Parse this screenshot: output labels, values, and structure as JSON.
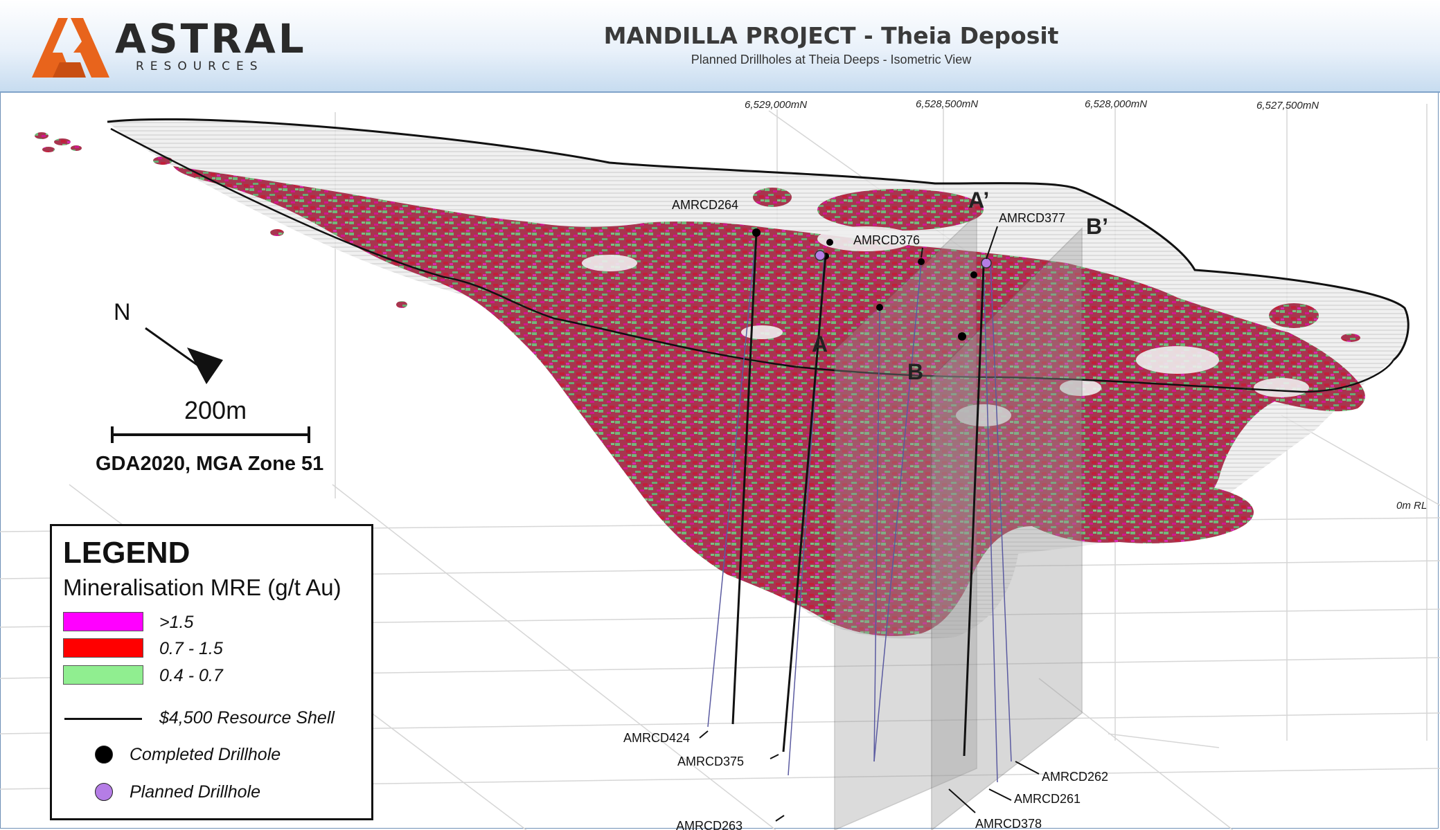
{
  "header": {
    "logo_word": "ASTRAL",
    "logo_sub": "RESOURCES",
    "title": "MANDILLA PROJECT - Theia Deposit",
    "subtitle": "Planned Drillholes at Theia Deeps - Isometric View"
  },
  "grid_labels": {
    "n1": "6,529,000mN",
    "n2": "6,528,500mN",
    "n3": "6,528,000mN",
    "n4": "6,527,500mN",
    "rl": "0m RL"
  },
  "sections": {
    "a": "A",
    "a_prime": "A’",
    "b": "B",
    "b_prime": "B’"
  },
  "drillholes": {
    "amrcd264": "AMRCD264",
    "amrcd376": "AMRCD376",
    "amrcd377": "AMRCD377",
    "amrcd424": "AMRCD424",
    "amrcd375": "AMRCD375",
    "amrcd263": "AMRCD263",
    "amrcd262": "AMRCD262",
    "amrcd261": "AMRCD261",
    "amrcd378": "AMRCD378"
  },
  "map_info": {
    "north": "N",
    "scale": "200m",
    "datum": "GDA2020, MGA Zone 51"
  },
  "legend": {
    "title": "LEGEND",
    "subtitle": "Mineralisation MRE (g/t Au)",
    "grade_high": ">1.5",
    "grade_mid": "0.7 - 1.5",
    "grade_low": "0.4 - 0.7",
    "shell": "$4,500 Resource Shell",
    "completed": "Completed Drillhole",
    "planned": "Planned Drillhole"
  },
  "colors": {
    "high": "#ff00ff",
    "mid": "#ff0000",
    "low": "#90ee90",
    "completed": "#000000",
    "planned": "#b57de6",
    "logo": "#e8641c"
  }
}
